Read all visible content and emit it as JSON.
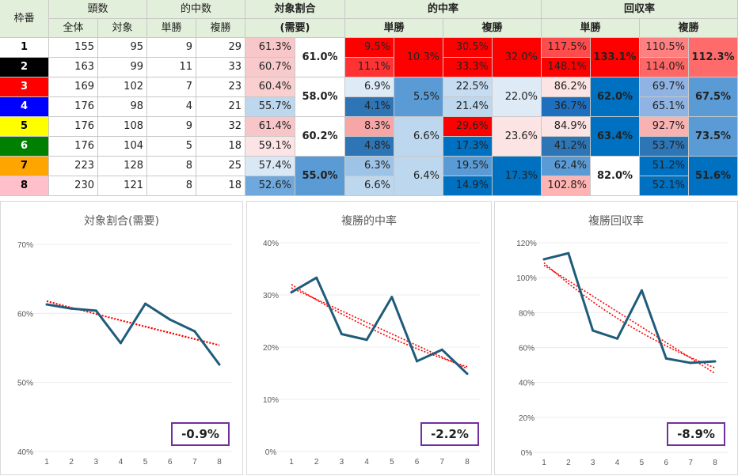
{
  "header": {
    "wakuban": "枠番",
    "tousuu": "頭数",
    "zentai": "全体",
    "taishou": "対象",
    "tekichuu_suu": "的中数",
    "tanshou": "単勝",
    "fukushou": "複勝",
    "taishou_wariai": "対象割合",
    "juyou": "(需要)",
    "tekichuu_ritsu": "的中率",
    "kaishuu_ritsu": "回収率"
  },
  "rows": [
    {
      "waku": "1",
      "zentai": "155",
      "taishou": "95",
      "tan_hit": "9",
      "fuku_hit": "29",
      "ratio": "61.3%",
      "tan_rate": "9.5%",
      "fuku_rate": "30.5%",
      "tan_ret": "117.5%",
      "fuku_ret": "110.5%"
    },
    {
      "waku": "2",
      "zentai": "163",
      "taishou": "99",
      "tan_hit": "11",
      "fuku_hit": "33",
      "ratio": "60.7%",
      "tan_rate": "11.1%",
      "fuku_rate": "33.3%",
      "tan_ret": "148.1%",
      "fuku_ret": "114.0%"
    },
    {
      "waku": "3",
      "zentai": "169",
      "taishou": "102",
      "tan_hit": "7",
      "fuku_hit": "23",
      "ratio": "60.4%",
      "tan_rate": "6.9%",
      "fuku_rate": "22.5%",
      "tan_ret": "86.2%",
      "fuku_ret": "69.7%"
    },
    {
      "waku": "4",
      "zentai": "176",
      "taishou": "98",
      "tan_hit": "4",
      "fuku_hit": "21",
      "ratio": "55.7%",
      "tan_rate": "4.1%",
      "fuku_rate": "21.4%",
      "tan_ret": "36.7%",
      "fuku_ret": "65.1%"
    },
    {
      "waku": "5",
      "zentai": "176",
      "taishou": "108",
      "tan_hit": "9",
      "fuku_hit": "32",
      "ratio": "61.4%",
      "tan_rate": "8.3%",
      "fuku_rate": "29.6%",
      "tan_ret": "84.9%",
      "fuku_ret": "92.7%"
    },
    {
      "waku": "6",
      "zentai": "176",
      "taishou": "104",
      "tan_hit": "5",
      "fuku_hit": "18",
      "ratio": "59.1%",
      "tan_rate": "4.8%",
      "fuku_rate": "17.3%",
      "tan_ret": "41.2%",
      "fuku_ret": "53.7%"
    },
    {
      "waku": "7",
      "zentai": "223",
      "taishou": "128",
      "tan_hit": "8",
      "fuku_hit": "25",
      "ratio": "57.4%",
      "tan_rate": "6.3%",
      "fuku_rate": "19.5%",
      "tan_ret": "62.4%",
      "fuku_ret": "51.2%"
    },
    {
      "waku": "8",
      "zentai": "230",
      "taishou": "121",
      "tan_hit": "8",
      "fuku_hit": "18",
      "ratio": "52.6%",
      "tan_rate": "6.6%",
      "fuku_rate": "14.9%",
      "tan_ret": "102.8%",
      "fuku_ret": "52.1%"
    }
  ],
  "pairs": [
    {
      "ratio": "61.0%",
      "tan_rate": "10.3%",
      "fuku_rate": "32.0%",
      "tan_ret": "133.1%",
      "fuku_ret": "112.3%"
    },
    {
      "ratio": "58.0%",
      "tan_rate": "5.5%",
      "fuku_rate": "22.0%",
      "tan_ret": "62.0%",
      "fuku_ret": "67.5%"
    },
    {
      "ratio": "60.2%",
      "tan_rate": "6.6%",
      "fuku_rate": "23.6%",
      "tan_ret": "63.4%",
      "fuku_ret": "73.5%"
    },
    {
      "ratio": "55.0%",
      "tan_rate": "6.4%",
      "fuku_rate": "17.3%",
      "tan_ret": "82.0%",
      "fuku_ret": "51.6%"
    }
  ],
  "colors": {
    "header_bg": "#e2efda",
    "waku": [
      "#ffffff",
      "#000000",
      "#ff0000",
      "#0000ff",
      "#ffff00",
      "#008000",
      "#ffa500",
      "#ffc0cb"
    ],
    "waku_text": [
      "#000000",
      "#ffffff",
      "#ffffff",
      "#ffffff",
      "#000000",
      "#ffffff",
      "#000000",
      "#000000"
    ],
    "line": "#1f5c7a",
    "trend": "#ff0000",
    "box_border": "#7030a0"
  },
  "chart_data": [
    {
      "type": "line",
      "title": "対象割合(需要)",
      "x": [
        1,
        2,
        3,
        4,
        5,
        6,
        7,
        8
      ],
      "series": [
        {
          "values": [
            61.3,
            60.7,
            60.4,
            55.7,
            61.4,
            59.1,
            57.4,
            52.6
          ]
        }
      ],
      "ylim": [
        40,
        70
      ],
      "yticks": [
        "40%",
        "50%",
        "60%",
        "70%"
      ],
      "trendlines": "two red dotted trendlines",
      "annotation": "-0.9%"
    },
    {
      "type": "line",
      "title": "複勝的中率",
      "x": [
        1,
        2,
        3,
        4,
        5,
        6,
        7,
        8
      ],
      "series": [
        {
          "values": [
            30.5,
            33.3,
            22.5,
            21.4,
            29.6,
            17.3,
            19.5,
            14.9
          ]
        }
      ],
      "ylim": [
        0,
        40
      ],
      "yticks": [
        "0%",
        "10%",
        "20%",
        "30%",
        "40%"
      ],
      "trendlines": "two red dotted trendlines",
      "annotation": "-2.2%"
    },
    {
      "type": "line",
      "title": "複勝回収率",
      "x": [
        1,
        2,
        3,
        4,
        5,
        6,
        7,
        8
      ],
      "series": [
        {
          "values": [
            110.5,
            114.0,
            69.7,
            65.1,
            92.7,
            53.7,
            51.2,
            52.1
          ]
        }
      ],
      "ylim": [
        0,
        120
      ],
      "yticks": [
        "0%",
        "20%",
        "40%",
        "60%",
        "80%",
        "100%",
        "120%"
      ],
      "trendlines": "two red dotted trendlines",
      "annotation": "-8.9%"
    }
  ]
}
